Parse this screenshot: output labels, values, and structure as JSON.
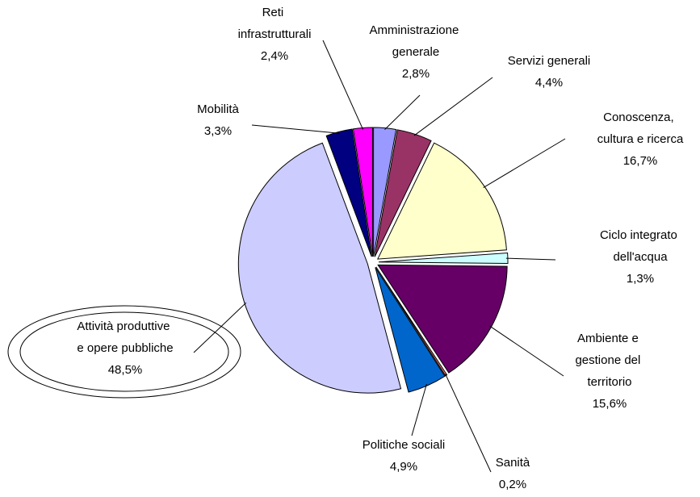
{
  "chart_data": {
    "type": "pie",
    "categories": [
      "Amministrazione\ngenerale",
      "Servizi generali",
      "Conoscenza,\ncultura e ricerca",
      "Ciclo integrato\ndell'acqua",
      "Ambiente e\ngestione del\nterritorio",
      "Sanità",
      "Politiche sociali",
      "Attività produttive\ne opere pubbliche",
      "Mobilità",
      "Reti\ninfrastrutturali"
    ],
    "values": [
      2.8,
      4.4,
      16.7,
      1.3,
      15.6,
      0.2,
      4.9,
      48.5,
      3.3,
      2.4
    ],
    "value_labels": [
      "2,8%",
      "4,4%",
      "16,7%",
      "1,3%",
      "15,6%",
      "0,2%",
      "4,9%",
      "48,5%",
      "3,3%",
      "2,4%"
    ],
    "colors": [
      "#9999ff",
      "#993366",
      "#ffffcc",
      "#ccffff",
      "#660066",
      "#ff8080",
      "#0066cc",
      "#ccccff",
      "#000080",
      "#ff00ff"
    ]
  }
}
